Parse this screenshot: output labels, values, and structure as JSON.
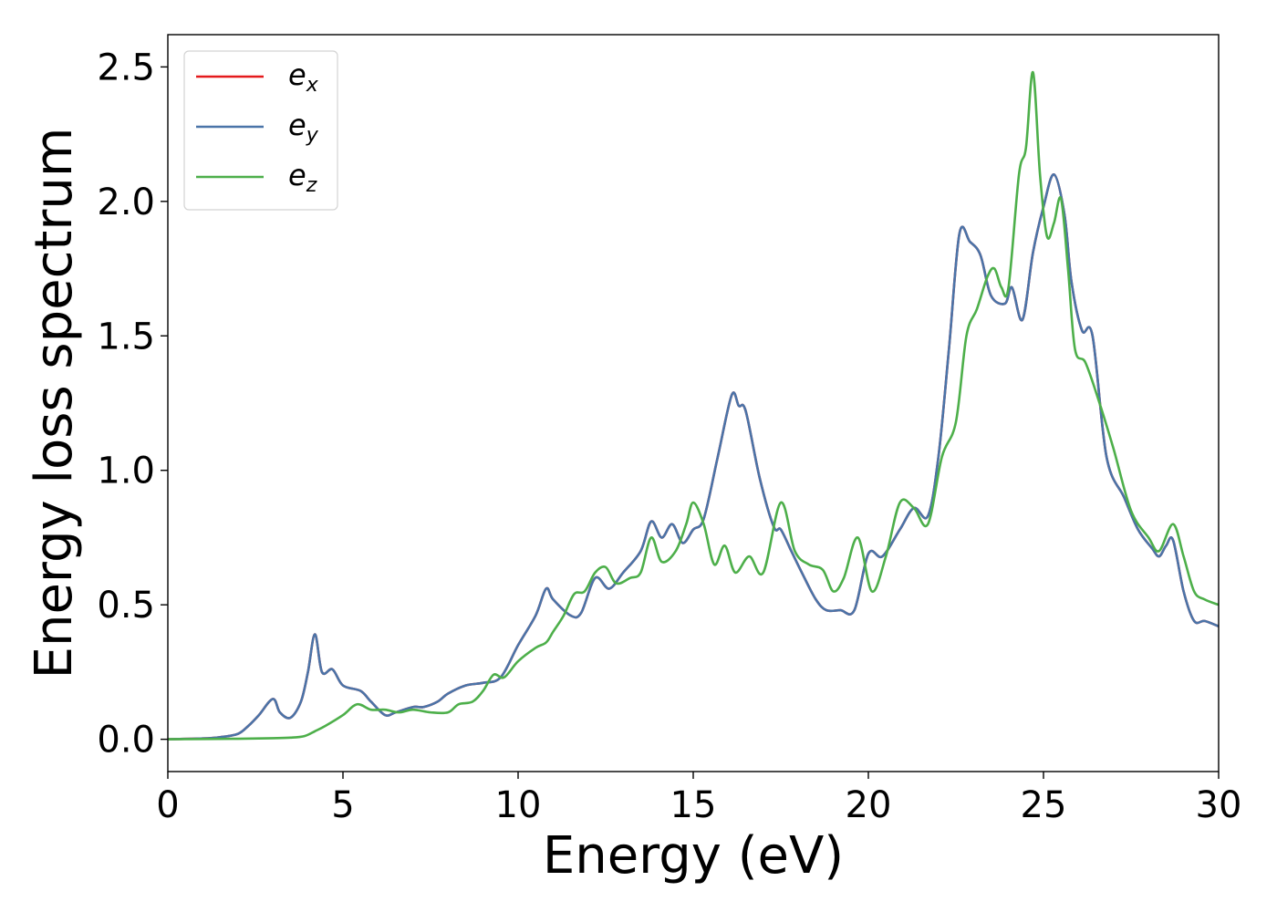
{
  "chart_data": {
    "type": "line",
    "title": "",
    "xlabel": "Energy (eV)",
    "ylabel": "Energy loss spectrum",
    "xlim": [
      0,
      30
    ],
    "ylim": [
      -0.12,
      2.62
    ],
    "xticks": [
      0,
      5,
      10,
      15,
      20,
      25,
      30
    ],
    "xtick_labels": [
      "0",
      "5",
      "10",
      "15",
      "20",
      "25",
      "30"
    ],
    "yticks": [
      0.0,
      0.5,
      1.0,
      1.5,
      2.0,
      2.5
    ],
    "ytick_labels": [
      "0.0",
      "0.5",
      "1.0",
      "1.5",
      "2.0",
      "2.5"
    ],
    "grid": false,
    "legend": {
      "position": "top-left",
      "entries": [
        {
          "base": "e",
          "sub": "x",
          "color": "#e41a1c"
        },
        {
          "base": "e",
          "sub": "y",
          "color": "#4a74a8"
        },
        {
          "base": "e",
          "sub": "z",
          "color": "#4daf4a"
        }
      ]
    },
    "series": [
      {
        "name": "e_x",
        "color": "#e41a1c",
        "x": [
          0,
          1,
          1.5,
          2,
          2.3,
          2.6,
          3.0,
          3.2,
          3.5,
          3.8,
          4.0,
          4.2,
          4.4,
          4.7,
          5.0,
          5.5,
          5.8,
          6.2,
          6.5,
          7.0,
          7.3,
          7.7,
          8.0,
          8.5,
          9.0,
          9.5,
          10.0,
          10.5,
          10.8,
          11.0,
          11.5,
          11.8,
          12.2,
          12.6,
          13.0,
          13.5,
          13.8,
          14.1,
          14.4,
          14.7,
          15.0,
          15.3,
          15.7,
          16.1,
          16.3,
          16.5,
          16.9,
          17.3,
          17.5,
          17.8,
          18.1,
          18.5,
          18.8,
          19.2,
          19.6,
          20.0,
          20.4,
          20.9,
          21.3,
          21.7,
          22.0,
          22.3,
          22.6,
          22.9,
          23.2,
          23.5,
          23.9,
          24.1,
          24.4,
          24.7,
          25.0,
          25.3,
          25.6,
          25.8,
          26.1,
          26.4,
          26.8,
          27.3,
          27.7,
          28.1,
          28.3,
          28.5,
          28.7,
          29.0,
          29.3,
          29.6,
          30.0
        ],
        "y": [
          0.0,
          0.003,
          0.008,
          0.02,
          0.05,
          0.09,
          0.15,
          0.1,
          0.08,
          0.14,
          0.25,
          0.39,
          0.25,
          0.26,
          0.2,
          0.18,
          0.14,
          0.09,
          0.1,
          0.12,
          0.12,
          0.14,
          0.17,
          0.2,
          0.21,
          0.23,
          0.35,
          0.46,
          0.56,
          0.52,
          0.46,
          0.47,
          0.6,
          0.56,
          0.62,
          0.7,
          0.81,
          0.75,
          0.8,
          0.73,
          0.78,
          0.82,
          1.05,
          1.28,
          1.24,
          1.22,
          0.97,
          0.79,
          0.78,
          0.7,
          0.62,
          0.52,
          0.48,
          0.48,
          0.48,
          0.69,
          0.68,
          0.78,
          0.86,
          0.83,
          1.05,
          1.45,
          1.88,
          1.85,
          1.8,
          1.65,
          1.62,
          1.68,
          1.56,
          1.81,
          1.98,
          2.1,
          1.95,
          1.7,
          1.52,
          1.5,
          1.05,
          0.9,
          0.78,
          0.71,
          0.68,
          0.72,
          0.74,
          0.55,
          0.44,
          0.44,
          0.42
        ]
      },
      {
        "name": "e_y",
        "color": "#4a74a8",
        "x": [
          0,
          1,
          1.5,
          2,
          2.3,
          2.6,
          3.0,
          3.2,
          3.5,
          3.8,
          4.0,
          4.2,
          4.4,
          4.7,
          5.0,
          5.5,
          5.8,
          6.2,
          6.5,
          7.0,
          7.3,
          7.7,
          8.0,
          8.5,
          9.0,
          9.5,
          10.0,
          10.5,
          10.8,
          11.0,
          11.5,
          11.8,
          12.2,
          12.6,
          13.0,
          13.5,
          13.8,
          14.1,
          14.4,
          14.7,
          15.0,
          15.3,
          15.7,
          16.1,
          16.3,
          16.5,
          16.9,
          17.3,
          17.5,
          17.8,
          18.1,
          18.5,
          18.8,
          19.2,
          19.6,
          20.0,
          20.4,
          20.9,
          21.3,
          21.7,
          22.0,
          22.3,
          22.6,
          22.9,
          23.2,
          23.5,
          23.9,
          24.1,
          24.4,
          24.7,
          25.0,
          25.3,
          25.6,
          25.8,
          26.1,
          26.4,
          26.8,
          27.3,
          27.7,
          28.1,
          28.3,
          28.5,
          28.7,
          29.0,
          29.3,
          29.6,
          30.0
        ],
        "y": [
          0.0,
          0.003,
          0.008,
          0.02,
          0.05,
          0.09,
          0.15,
          0.1,
          0.08,
          0.14,
          0.25,
          0.39,
          0.25,
          0.26,
          0.2,
          0.18,
          0.14,
          0.09,
          0.1,
          0.12,
          0.12,
          0.14,
          0.17,
          0.2,
          0.21,
          0.23,
          0.35,
          0.46,
          0.56,
          0.52,
          0.46,
          0.47,
          0.6,
          0.56,
          0.62,
          0.7,
          0.81,
          0.75,
          0.8,
          0.73,
          0.78,
          0.82,
          1.05,
          1.28,
          1.24,
          1.22,
          0.97,
          0.79,
          0.78,
          0.7,
          0.62,
          0.52,
          0.48,
          0.48,
          0.48,
          0.69,
          0.68,
          0.78,
          0.86,
          0.83,
          1.05,
          1.45,
          1.88,
          1.85,
          1.8,
          1.65,
          1.62,
          1.68,
          1.56,
          1.81,
          1.98,
          2.1,
          1.95,
          1.7,
          1.52,
          1.5,
          1.05,
          0.9,
          0.78,
          0.71,
          0.68,
          0.72,
          0.74,
          0.55,
          0.44,
          0.44,
          0.42
        ]
      },
      {
        "name": "e_z",
        "color": "#4daf4a",
        "x": [
          0,
          2,
          3,
          3.5,
          3.9,
          4.2,
          4.5,
          5.0,
          5.4,
          5.8,
          6.2,
          6.6,
          7.0,
          7.5,
          8.0,
          8.3,
          8.7,
          9.0,
          9.3,
          9.6,
          10.0,
          10.5,
          10.8,
          11.0,
          11.3,
          11.6,
          11.9,
          12.2,
          12.5,
          12.8,
          13.2,
          13.5,
          13.8,
          14.1,
          14.5,
          14.8,
          15.0,
          15.3,
          15.6,
          15.9,
          16.2,
          16.6,
          17.0,
          17.5,
          17.9,
          18.3,
          18.7,
          19.0,
          19.3,
          19.7,
          20.1,
          20.5,
          20.9,
          21.3,
          21.7,
          22.1,
          22.5,
          22.8,
          23.1,
          23.4,
          23.6,
          23.8,
          24.0,
          24.3,
          24.5,
          24.7,
          24.9,
          25.1,
          25.3,
          25.5,
          25.7,
          25.9,
          26.2,
          26.6,
          27.0,
          27.5,
          28.0,
          28.3,
          28.7,
          29.0,
          29.3,
          29.6,
          30.0
        ],
        "y": [
          0.0,
          0.002,
          0.004,
          0.006,
          0.012,
          0.03,
          0.05,
          0.09,
          0.13,
          0.11,
          0.11,
          0.1,
          0.11,
          0.1,
          0.1,
          0.13,
          0.14,
          0.18,
          0.24,
          0.23,
          0.29,
          0.34,
          0.36,
          0.4,
          0.46,
          0.54,
          0.55,
          0.62,
          0.64,
          0.58,
          0.6,
          0.62,
          0.75,
          0.66,
          0.7,
          0.8,
          0.88,
          0.8,
          0.65,
          0.72,
          0.62,
          0.68,
          0.62,
          0.88,
          0.7,
          0.65,
          0.63,
          0.55,
          0.6,
          0.75,
          0.55,
          0.68,
          0.88,
          0.86,
          0.8,
          1.05,
          1.18,
          1.5,
          1.6,
          1.72,
          1.75,
          1.68,
          1.68,
          2.1,
          2.2,
          2.48,
          2.1,
          1.87,
          1.92,
          2.01,
          1.75,
          1.45,
          1.4,
          1.25,
          1.08,
          0.85,
          0.75,
          0.7,
          0.8,
          0.68,
          0.55,
          0.52,
          0.5
        ]
      }
    ]
  }
}
